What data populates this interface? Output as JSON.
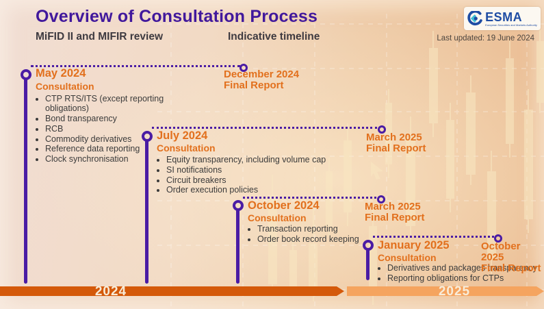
{
  "header": {
    "title": "Overview of Consultation Process",
    "subtitle_left": "MiFID II and MIFIR review",
    "subtitle_right": "Indicative timeline",
    "last_updated": "Last updated: 19 June 2024",
    "logo": {
      "name": "ESMA",
      "tagline": "European Securities and Markets Authority"
    }
  },
  "milestones": [
    {
      "start_label": "May 2024",
      "phase_label": "Consultation",
      "items": [
        "CTP RTS/ITS (except reporting obligations)",
        "Bond transparency",
        "RCB",
        "Commodity derivatives",
        "Reference data reporting",
        "Clock synchronisation"
      ],
      "end_label": "December 2024",
      "end_sublabel": "Final Report"
    },
    {
      "start_label": "July 2024",
      "phase_label": "Consultation",
      "items": [
        "Equity transparency, including volume cap",
        "SI notifications",
        "Circuit breakers",
        "Order execution policies"
      ],
      "end_label": "March 2025",
      "end_sublabel": "Final Report"
    },
    {
      "start_label": "October 2024",
      "phase_label": "Consultation",
      "items": [
        "Transaction reporting",
        "Order book record keeping"
      ],
      "end_label": "March 2025",
      "end_sublabel": "Final Report"
    },
    {
      "start_label": "January 2025",
      "phase_label": "Consultation",
      "items": [
        "Derivatives and packages transparency",
        "Reporting obligations for CTPs"
      ],
      "end_label": "October 2025",
      "end_sublabel": "Final Report"
    }
  ],
  "axis": {
    "year_left": "2024",
    "year_right": "2025"
  },
  "colors": {
    "title_purple": "#41189c",
    "purple": "#4a1ca4",
    "heading_orange": "#e2701d",
    "body_text": "#3b3b3b",
    "bar_2024": "#d4590a",
    "bar_2025": "#f5a45f",
    "year_text": "#f8ecd9",
    "esma_blue": "#1e4ca3"
  }
}
